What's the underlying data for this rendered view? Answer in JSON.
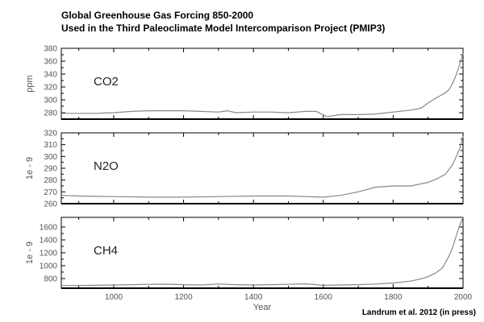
{
  "title_line1": "Global Greenhouse Gas Forcing 850-2000",
  "title_line2": "Used in the Third Paleoclimate Model Intercomparison Project (PMIP3)",
  "credit": "Landrum et al. 2012 (in press)",
  "chart_data": [
    {
      "type": "line",
      "label": "CO2",
      "ylabel": "ppm",
      "xlabel": "",
      "xlim": [
        850,
        2000
      ],
      "ylim": [
        270,
        380
      ],
      "yticks": [
        280,
        300,
        320,
        340,
        360,
        380
      ],
      "xticks": [
        1000,
        1200,
        1400,
        1600,
        1800,
        2000
      ],
      "series": [
        {
          "x": [
            850,
            900,
            950,
            1000,
            1050,
            1100,
            1150,
            1200,
            1250,
            1300,
            1325,
            1350,
            1400,
            1450,
            1500,
            1550,
            1580,
            1610,
            1650,
            1700,
            1750,
            1800,
            1850,
            1880,
            1900,
            1920,
            1940,
            1950,
            1960,
            1970,
            1980,
            1990,
            2000
          ],
          "y": [
            279,
            279,
            279,
            280,
            282,
            283,
            283,
            283,
            282,
            281,
            283,
            280,
            281,
            281,
            280,
            282,
            282,
            274,
            277,
            277,
            278,
            281,
            284,
            287,
            295,
            302,
            308,
            311,
            316,
            325,
            338,
            354,
            372
          ]
        }
      ]
    },
    {
      "type": "line",
      "label": "N2O",
      "ylabel": "1e - 9",
      "xlabel": "",
      "xlim": [
        850,
        2000
      ],
      "ylim": [
        260,
        320
      ],
      "yticks": [
        260,
        270,
        280,
        290,
        300,
        310,
        320
      ],
      "xticks": [
        1000,
        1200,
        1400,
        1600,
        1800,
        2000
      ],
      "series": [
        {
          "x": [
            850,
            900,
            1000,
            1100,
            1200,
            1300,
            1400,
            1500,
            1550,
            1600,
            1650,
            1700,
            1750,
            1800,
            1850,
            1900,
            1925,
            1950,
            1970,
            1990,
            2000
          ],
          "y": [
            267,
            266.5,
            266,
            265.5,
            265.5,
            266,
            266.5,
            266.5,
            266,
            265.5,
            267,
            270,
            274,
            275,
            275,
            278,
            281,
            285,
            293,
            306,
            317
          ]
        }
      ]
    },
    {
      "type": "line",
      "label": "CH4",
      "ylabel": "1e - 9",
      "xlabel": "Year",
      "xlim": [
        850,
        2000
      ],
      "ylim": [
        650,
        1750
      ],
      "yticks": [
        800,
        1000,
        1200,
        1400,
        1600
      ],
      "xticks": [
        1000,
        1200,
        1400,
        1600,
        1800,
        2000
      ],
      "series": [
        {
          "x": [
            850,
            900,
            950,
            1000,
            1050,
            1100,
            1150,
            1200,
            1250,
            1300,
            1350,
            1400,
            1450,
            1500,
            1550,
            1600,
            1650,
            1700,
            1750,
            1800,
            1850,
            1880,
            1900,
            1920,
            1940,
            1950,
            1960,
            1970,
            1980,
            1990,
            2000
          ],
          "y": [
            690,
            692,
            695,
            700,
            705,
            710,
            712,
            705,
            700,
            715,
            705,
            700,
            705,
            710,
            718,
            695,
            700,
            705,
            715,
            730,
            760,
            795,
            830,
            880,
            960,
            1050,
            1150,
            1280,
            1450,
            1620,
            1750
          ]
        }
      ]
    }
  ]
}
